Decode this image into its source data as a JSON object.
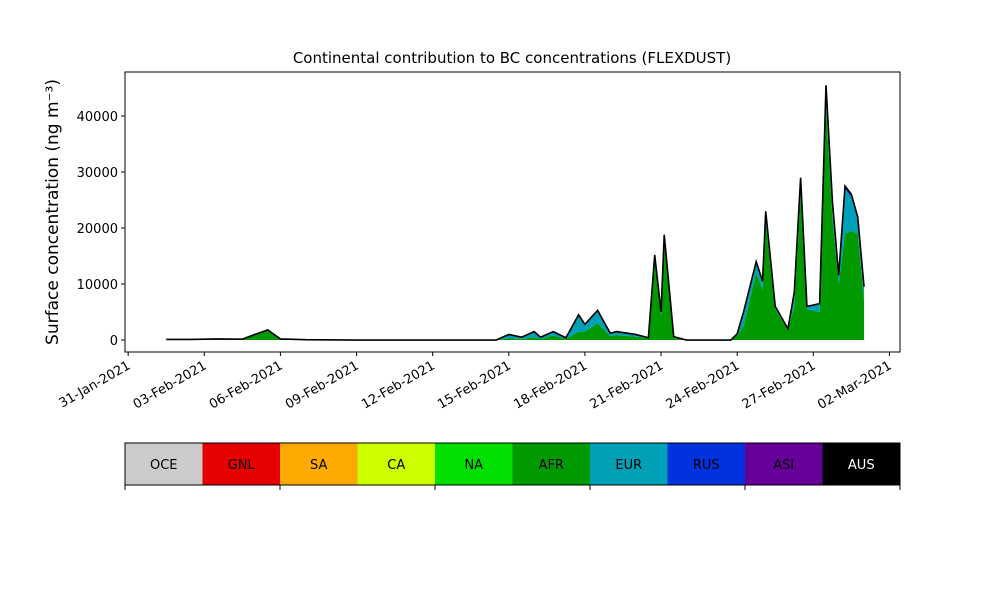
{
  "chart_data": {
    "type": "stacked_area",
    "title": "Continental contribution to BC concentrations (FLEXDUST)",
    "ylabel": "Surface concentration (ng m⁻³)",
    "x": [
      "2021-02-01T12:00",
      "2021-02-02T12:00",
      "2021-02-03T12:00",
      "2021-02-04T12:00",
      "2021-02-05T00:00",
      "2021-02-05T12:00",
      "2021-02-06T00:00",
      "2021-02-07T00:00",
      "2021-02-09T00:00",
      "2021-02-12T00:00",
      "2021-02-14T12:00",
      "2021-02-15T00:00",
      "2021-02-15T12:00",
      "2021-02-16T00:00",
      "2021-02-16T06:00",
      "2021-02-16T18:00",
      "2021-02-17T06:00",
      "2021-02-17T18:00",
      "2021-02-18T00:00",
      "2021-02-18T12:00",
      "2021-02-19T00:00",
      "2021-02-19T06:00",
      "2021-02-20T00:00",
      "2021-02-20T12:00",
      "2021-02-20T18:00",
      "2021-02-21T00:00",
      "2021-02-21T03:00",
      "2021-02-21T12:00",
      "2021-02-22T00:00",
      "2021-02-23T18:00",
      "2021-02-24T00:00",
      "2021-02-24T06:00",
      "2021-02-24T18:00",
      "2021-02-25T00:00",
      "2021-02-25T03:00",
      "2021-02-25T12:00",
      "2021-02-26T00:00",
      "2021-02-26T06:00",
      "2021-02-26T12:00",
      "2021-02-26T18:00",
      "2021-02-27T06:00",
      "2021-02-27T12:00",
      "2021-02-27T18:00",
      "2021-02-28T00:00",
      "2021-02-28T06:00",
      "2021-02-28T12:00",
      "2021-02-28T18:00",
      "2021-03-01T00:00"
    ],
    "series": [
      {
        "name": "AFR",
        "color": "#009900",
        "values": [
          100,
          100,
          200,
          150,
          1000,
          1800,
          200,
          50,
          0,
          0,
          0,
          300,
          200,
          500,
          200,
          800,
          200,
          1500,
          1500,
          3000,
          700,
          900,
          600,
          300,
          14000,
          4500,
          17500,
          500,
          0,
          0,
          800,
          2500,
          12000,
          9000,
          21000,
          5500,
          1800,
          6000,
          26500,
          5500,
          5000,
          42000,
          22000,
          10000,
          19000,
          19500,
          19000,
          7000
        ]
      },
      {
        "name": "EUR",
        "color": "#00a0b8",
        "values": [
          0,
          0,
          0,
          0,
          0,
          0,
          0,
          0,
          0,
          0,
          0,
          700,
          300,
          1000,
          300,
          700,
          200,
          3000,
          1300,
          2300,
          500,
          600,
          400,
          100,
          1200,
          500,
          1300,
          100,
          0,
          0,
          300,
          2500,
          2000,
          1500,
          2000,
          500,
          200,
          2500,
          2500,
          500,
          1500,
          3000,
          3000,
          1500,
          8000,
          6000,
          3000,
          2500
        ]
      },
      {
        "name": "RUS",
        "color": "#0033dd",
        "values": [
          0,
          0,
          0,
          0,
          0,
          0,
          0,
          0,
          0,
          0,
          0,
          0,
          0,
          0,
          0,
          0,
          0,
          0,
          0,
          0,
          0,
          0,
          0,
          0,
          0,
          0,
          0,
          0,
          0,
          0,
          0,
          0,
          0,
          0,
          0,
          0,
          0,
          0,
          0,
          0,
          0,
          500,
          0,
          0,
          500,
          500,
          0,
          0
        ]
      }
    ],
    "xlim": [
      "2021-01-30T21:00",
      "2021-03-02T10:00"
    ],
    "xticks": [
      {
        "value": "2021-01-31T00:00",
        "label": "31-Jan-2021"
      },
      {
        "value": "2021-02-03T00:00",
        "label": "03-Feb-2021"
      },
      {
        "value": "2021-02-06T00:00",
        "label": "06-Feb-2021"
      },
      {
        "value": "2021-02-09T00:00",
        "label": "09-Feb-2021"
      },
      {
        "value": "2021-02-12T00:00",
        "label": "12-Feb-2021"
      },
      {
        "value": "2021-02-15T00:00",
        "label": "15-Feb-2021"
      },
      {
        "value": "2021-02-18T00:00",
        "label": "18-Feb-2021"
      },
      {
        "value": "2021-02-21T00:00",
        "label": "21-Feb-2021"
      },
      {
        "value": "2021-02-24T00:00",
        "label": "24-Feb-2021"
      },
      {
        "value": "2021-02-27T00:00",
        "label": "27-Feb-2021"
      },
      {
        "value": "2021-03-02T00:00",
        "label": "02-Mar-2021"
      }
    ],
    "ylim": [
      -2140,
      47860
    ],
    "yticks": [
      0,
      10000,
      20000,
      30000,
      40000
    ],
    "legend": [
      {
        "name": "OCE",
        "color": "#cccccc"
      },
      {
        "name": "GNL",
        "color": "#e60000"
      },
      {
        "name": "SA",
        "color": "#ffaa00"
      },
      {
        "name": "CA",
        "color": "#ccff00"
      },
      {
        "name": "NA",
        "color": "#00e000"
      },
      {
        "name": "AFR",
        "color": "#009900"
      },
      {
        "name": "EUR",
        "color": "#00a0b8"
      },
      {
        "name": "RUS",
        "color": "#0033dd"
      },
      {
        "name": "ASI",
        "color": "#660099"
      },
      {
        "name": "AUS",
        "color": "#000000"
      }
    ]
  }
}
